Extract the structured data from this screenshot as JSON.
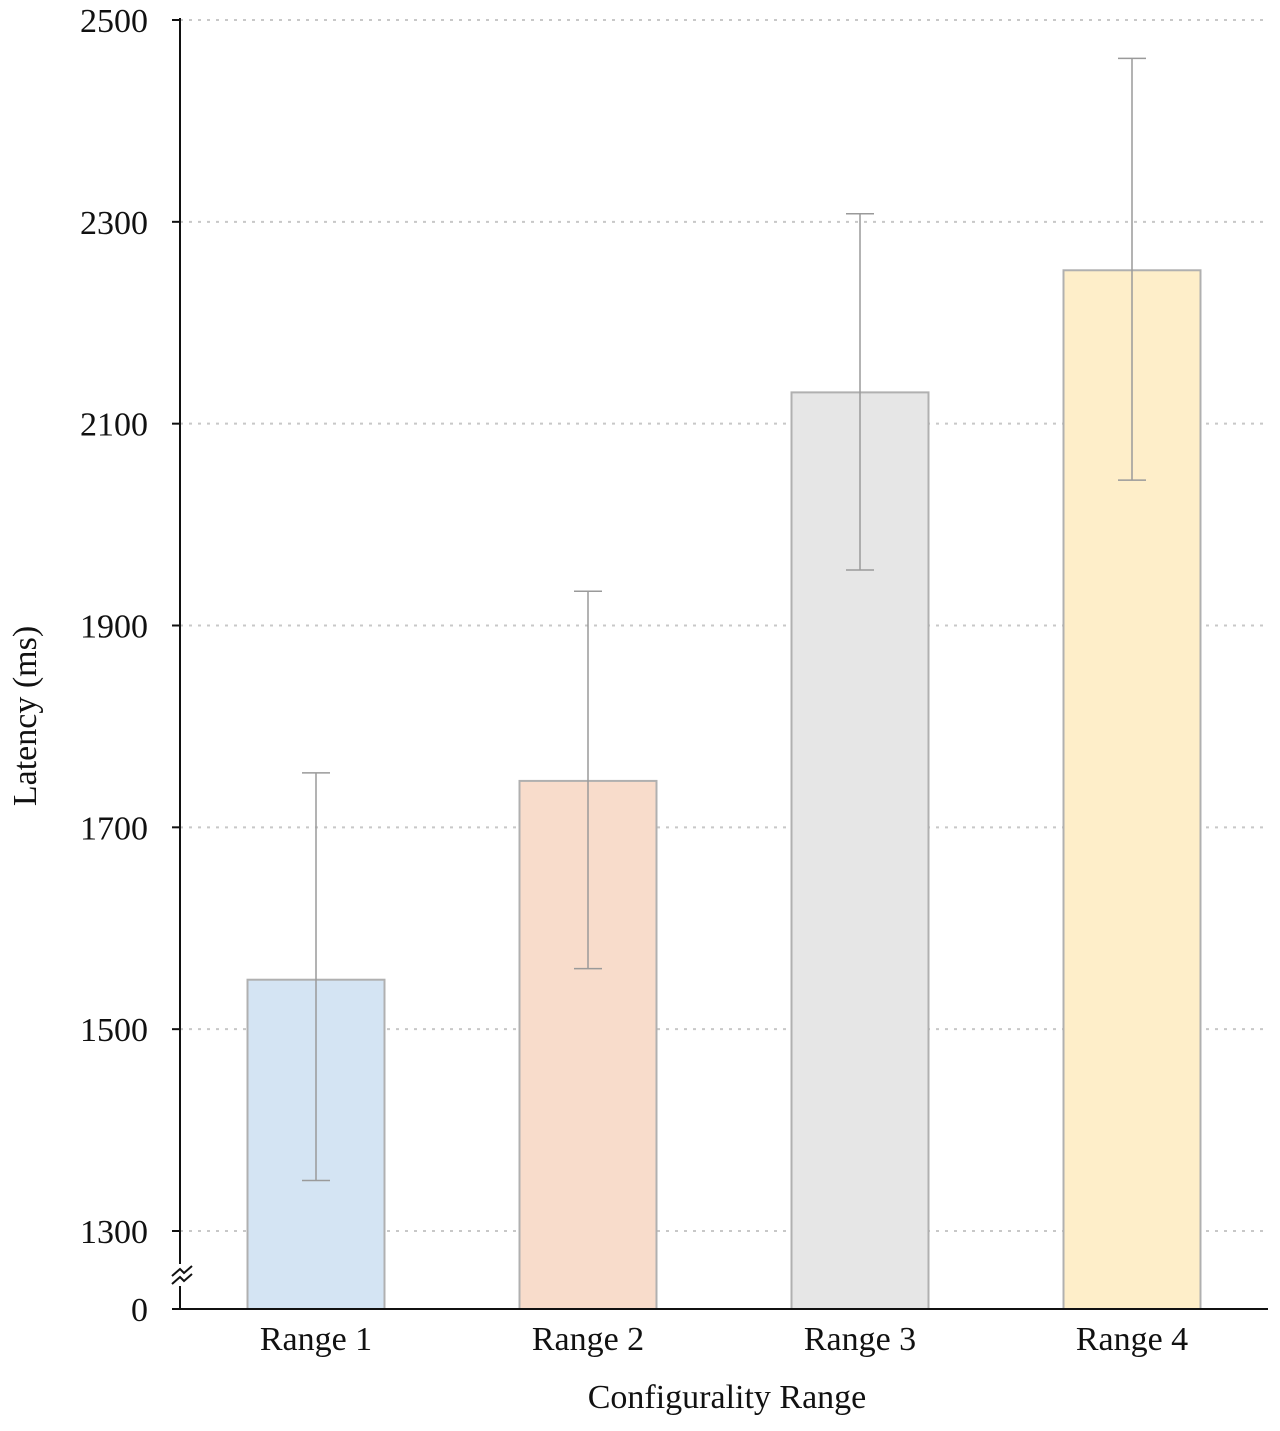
{
  "chart_data": {
    "type": "bar",
    "title": "",
    "xlabel": "Configurality Range",
    "ylabel": "Latency (ms)",
    "categories": [
      "Range 1",
      "Range 2",
      "Range 3",
      "Range 4"
    ],
    "values": [
      1549,
      1746,
      2131,
      2252
    ],
    "error_low": [
      1350,
      1560,
      1955,
      2044
    ],
    "error_high": [
      1754,
      1934,
      2308,
      2462
    ],
    "bar_colors": [
      "#d4e4f3",
      "#f8dccb",
      "#e6e6e6",
      "#feeec9"
    ],
    "bar_edge_color": "#b0b0b0",
    "error_color": "#9a9a9a",
    "grid": true,
    "grid_style": "dotted",
    "y_axis_break": true,
    "y_ticks": [
      0,
      1300,
      1500,
      1700,
      1900,
      2100,
      2300,
      2500
    ],
    "y_tick_labels": [
      "0",
      "1300",
      "1500",
      "1700",
      "1900",
      "2100",
      "2300",
      "2500"
    ],
    "ylim": [
      1300,
      2500
    ],
    "break_symbol": "≈"
  }
}
